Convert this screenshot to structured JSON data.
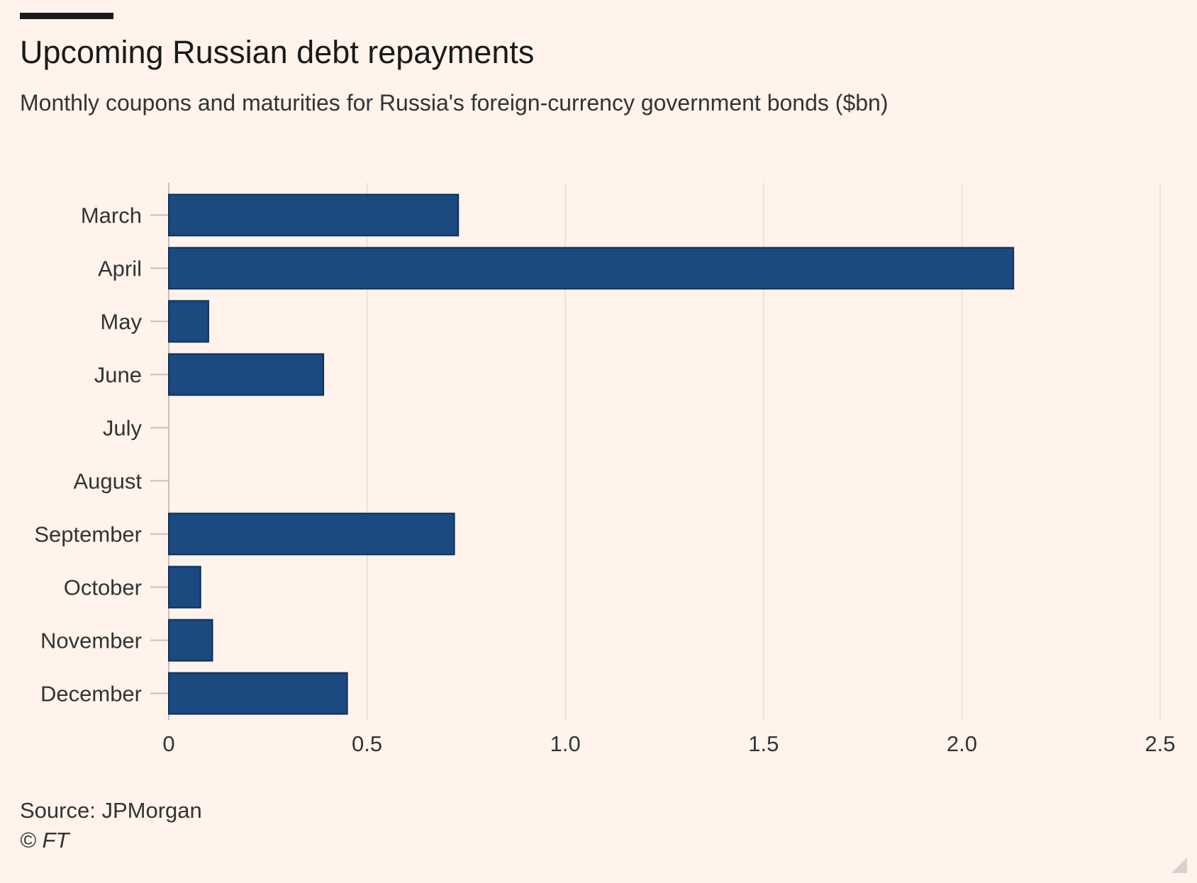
{
  "header": {
    "title": "Upcoming Russian debt repayments",
    "subtitle": "Monthly coupons and maturities for Russia's foreign-currency government bonds ($bn)"
  },
  "footer": {
    "source": "Source: JPMorgan",
    "copyright": "© FT"
  },
  "colors": {
    "background": "#fff3ec",
    "bar": "#1a4a80",
    "bar_edge": "#0f2f58",
    "gridline": "#e6dcd4",
    "axis": "#c9c0b9"
  },
  "chart_data": {
    "type": "bar",
    "orientation": "horizontal",
    "categories": [
      "March",
      "April",
      "May",
      "June",
      "July",
      "August",
      "September",
      "October",
      "November",
      "December"
    ],
    "values": [
      0.73,
      2.13,
      0.1,
      0.39,
      0,
      0,
      0.72,
      0.08,
      0.11,
      0.45
    ],
    "x_ticks": [
      "0",
      "0.5",
      "1.0",
      "1.5",
      "2.0",
      "2.5"
    ],
    "xlim": [
      0,
      2.5
    ],
    "grid": true
  }
}
